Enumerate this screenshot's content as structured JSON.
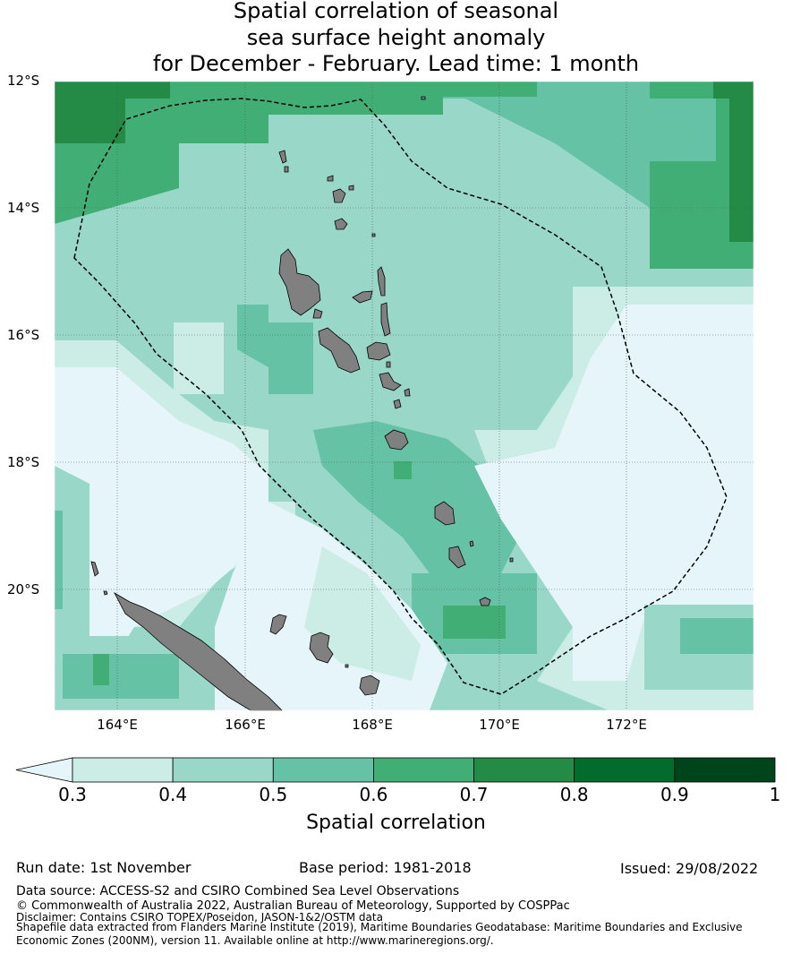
{
  "title": {
    "line1": "Spatial correlation of seasonal",
    "line2": "sea surface height anomaly",
    "line3": "for December - February. Lead time: 1 month"
  },
  "map": {
    "lat_labels": [
      "12°S",
      "14°S",
      "16°S",
      "18°S",
      "20°S"
    ],
    "lon_labels": [
      "164°E",
      "166°E",
      "168°E",
      "170°E",
      "172°E"
    ],
    "extent": {
      "lon_min": 163,
      "lon_max": 174,
      "lat_max": -12,
      "lat_min": -21.9
    },
    "land_color": "#808080",
    "eez_line": "dashed black"
  },
  "colorbar": {
    "label": "Spatial correlation",
    "ticks": [
      "0.3",
      "0.4",
      "0.5",
      "0.6",
      "0.7",
      "0.8",
      "0.9",
      "1"
    ],
    "colors": [
      "#e5f5f9",
      "#ccece6",
      "#99d8c9",
      "#66c2a4",
      "#41ae76",
      "#238b45",
      "#006d2c",
      "#00441b"
    ],
    "extend": "min"
  },
  "info": {
    "run_date": "Run date: 1st November",
    "base_period": "Base period: 1981-2018",
    "issued": "Issued: 29/08/2022",
    "data_source": "Data source: ACCESS-S2 and CSIRO Combined Sea Level Observations",
    "copyright": "© Commonwealth of Australia 2022, Australian Bureau of Meteorology, Supported by COSPPac",
    "disclaimer": "Disclaimer: Contains CSIRO TOPEX/Poseidon, JASON-1&2/OSTM data",
    "shapefile1": "Shapefile data extracted from Flanders Marine Institute (2019), Maritime Boundaries Geodatabase: Maritime Boundaries and Exclusive",
    "shapefile2": "Economic Zones (200NM), version 11. Available online at http://www.marineregions.org/."
  }
}
